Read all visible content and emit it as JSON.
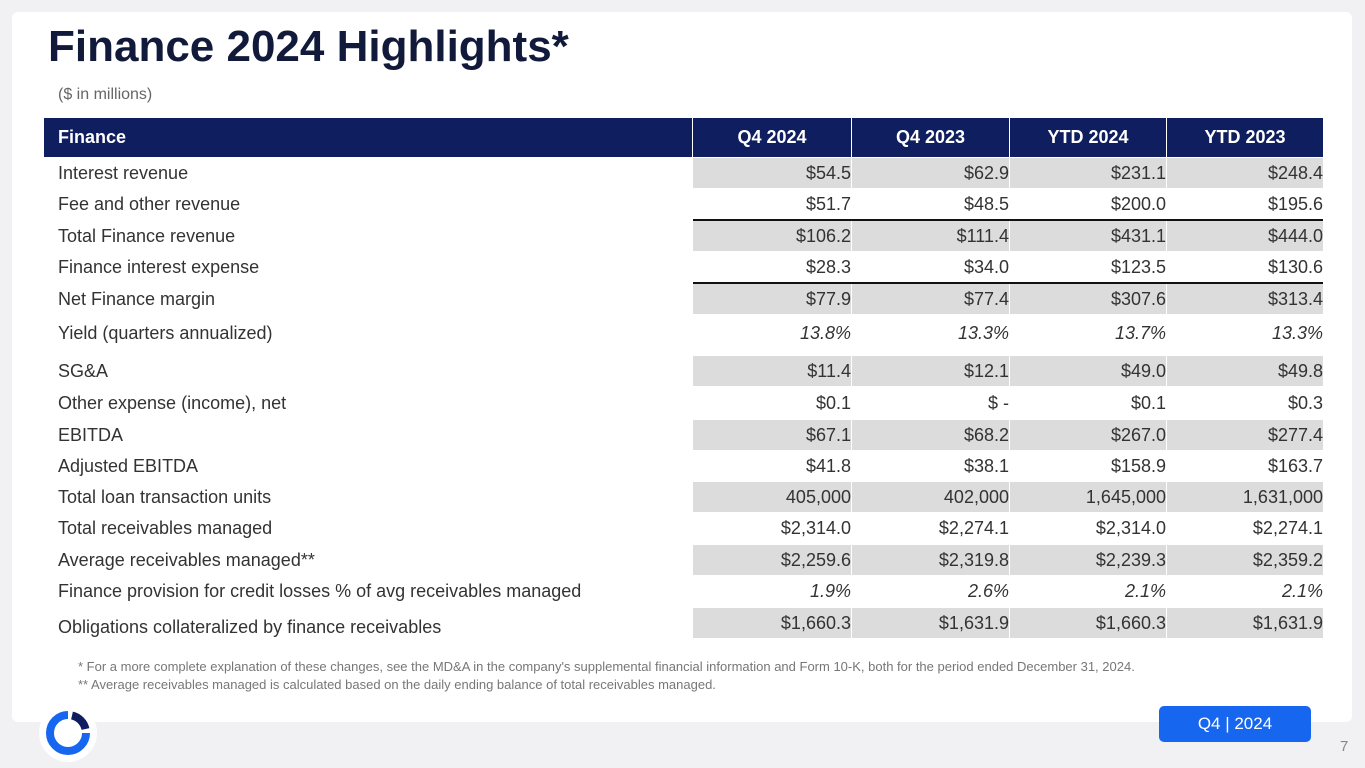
{
  "header": {
    "title": "Finance 2024 Highlights*",
    "subtitle": "($ in millions)"
  },
  "table": {
    "columns": [
      "Finance",
      "Q4 2024",
      "Q4 2023",
      "YTD 2024",
      "YTD 2023"
    ],
    "rows": [
      [
        "Interest revenue",
        "$54.5",
        "$62.9",
        "$231.1",
        "$248.4"
      ],
      [
        "Fee and other revenue",
        "$51.7",
        "$48.5",
        "$200.0",
        "$195.6"
      ],
      [
        "Total Finance revenue",
        "$106.2",
        "$111.4",
        "$431.1",
        "$444.0"
      ],
      [
        "Finance interest expense",
        "$28.3",
        "$34.0",
        "$123.5",
        "$130.6"
      ],
      [
        "Net Finance margin",
        "$77.9",
        "$77.4",
        "$307.6",
        "$313.4"
      ],
      [
        "Yield (quarters annualized)",
        "13.8%",
        "13.3%",
        "13.7%",
        "13.3%"
      ],
      [
        "SG&A",
        "$11.4",
        "$12.1",
        "$49.0",
        "$49.8"
      ],
      [
        "Other expense (income), net",
        "$0.1",
        "$ -",
        "$0.1",
        "$0.3"
      ],
      [
        "EBITDA",
        "$67.1",
        "$68.2",
        "$267.0",
        "$277.4"
      ],
      [
        "Adjusted EBITDA",
        "$41.8",
        "$38.1",
        "$158.9",
        "$163.7"
      ],
      [
        "Total loan transaction units",
        "405,000",
        "402,000",
        "1,645,000",
        "1,631,000"
      ],
      [
        "Total receivables managed",
        "$2,314.0",
        "$2,274.1",
        "$2,314.0",
        "$2,274.1"
      ],
      [
        "Average receivables managed**",
        "$2,259.6",
        "$2,319.8",
        "$2,239.3",
        "$2,359.2"
      ],
      [
        "Finance provision for credit losses % of avg receivables managed",
        "1.9%",
        "2.6%",
        "2.1%",
        "2.1%"
      ],
      [
        "Obligations collateralized by finance receivables",
        "$1,660.3",
        "$1,631.9",
        "$1,660.3",
        "$1,631.9"
      ]
    ]
  },
  "footnotes": [
    "* For a more complete explanation of these changes, see the MD&A in the company's supplemental financial information and Form 10-K, both for the period ended December 31, 2024.",
    "** Average receivables managed is calculated based on the daily ending balance of total receivables managed."
  ],
  "badge": "Q4 | 2024",
  "page_number": "7"
}
